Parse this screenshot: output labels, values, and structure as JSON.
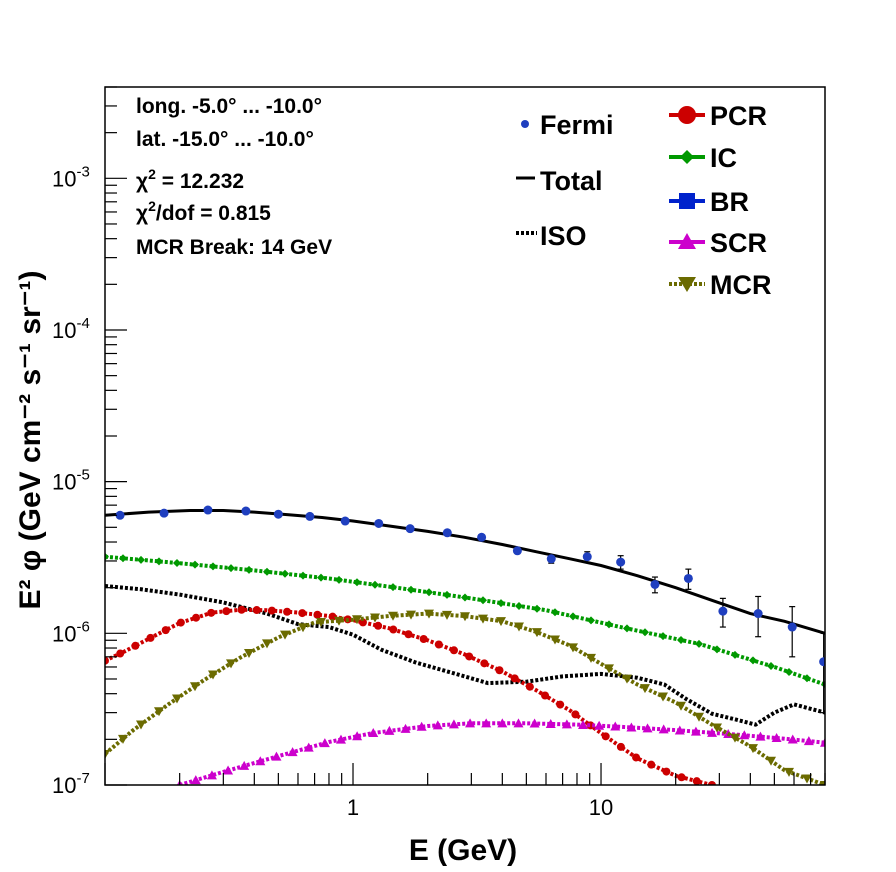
{
  "chart_data": {
    "type": "scatter",
    "xscale": "log",
    "yscale": "log",
    "xlim": [
      0.1,
      80
    ],
    "ylim": [
      1e-07,
      0.004
    ],
    "xlabel": "E (GeV)",
    "ylabel": "E² φ (GeV cm⁻² s⁻¹ sr⁻¹)",
    "x_tick_labels": [
      {
        "value": 1,
        "text": "1"
      },
      {
        "value": 10,
        "text": "10"
      }
    ],
    "y_tick_labels": [
      {
        "value": 1e-07,
        "base": "10",
        "exp": "-7"
      },
      {
        "value": 1e-06,
        "base": "10",
        "exp": "-6"
      },
      {
        "value": 1e-05,
        "base": "10",
        "exp": "-5"
      },
      {
        "value": 0.0001,
        "base": "10",
        "exp": "-4"
      },
      {
        "value": 0.001,
        "base": "10",
        "exp": "-3"
      }
    ],
    "annotations": {
      "long": "long. -5.0° ... -10.0°",
      "lat": "lat. -15.0° ... -10.0°",
      "chi2_prefix": "χ",
      "chi2_sup": "2",
      "chi2_suffix": " = 12.232",
      "chidof_prefix": "χ",
      "chidof_sup": "2",
      "chidof_suffix": "/dof = 0.815",
      "break": "MCR Break: 14 GeV"
    },
    "legend": [
      {
        "name": "Fermi",
        "style": "points"
      },
      {
        "name": "Total",
        "style": "line"
      },
      {
        "name": "ISO",
        "style": "dotted"
      },
      {
        "name": "PCR",
        "style": "circle-line"
      },
      {
        "name": "IC",
        "style": "diamond-line"
      },
      {
        "name": "BR",
        "style": "square-line"
      },
      {
        "name": "SCR",
        "style": "triangle-line"
      },
      {
        "name": "MCR",
        "style": "triangle-down-line"
      }
    ],
    "fermi": {
      "name": "Fermi",
      "color": "#1f3fbf",
      "x": [
        0.115,
        0.173,
        0.26,
        0.37,
        0.5,
        0.67,
        0.93,
        1.27,
        1.7,
        2.4,
        3.3,
        4.6,
        6.3,
        8.8,
        12,
        16.5,
        22.5,
        31,
        43,
        59,
        79
      ],
      "y": [
        6e-06,
        6.2e-06,
        6.5e-06,
        6.4e-06,
        6.1e-06,
        5.9e-06,
        5.5e-06,
        5.3e-06,
        4.9e-06,
        4.6e-06,
        4.3e-06,
        3.5e-06,
        3.1e-06,
        3.2e-06,
        2.95e-06,
        2.1e-06,
        2.3e-06,
        1.4e-06,
        1.35e-06,
        1.1e-06,
        6.5e-07
      ],
      "err_low": [
        0,
        0,
        0,
        0,
        0,
        0,
        0,
        0,
        0,
        0,
        0,
        0,
        2e-07,
        2.5e-07,
        3e-07,
        2.5e-07,
        3.5e-07,
        3e-07,
        4e-07,
        4e-07,
        3.5e-07
      ],
      "err_high": [
        0,
        0,
        0,
        0,
        0,
        0,
        0,
        0,
        0,
        0,
        0,
        0,
        2e-07,
        2.5e-07,
        3e-07,
        2.5e-07,
        3.5e-07,
        3e-07,
        4e-07,
        4e-07,
        3.5e-07
      ]
    },
    "series": [
      {
        "name": "Total",
        "color": "#000000",
        "style": "solid",
        "marker": "none",
        "x": [
          0.1,
          0.15,
          0.22,
          0.3,
          0.4,
          0.55,
          0.75,
          1.0,
          1.4,
          2.0,
          2.8,
          4.0,
          5.5,
          7.5,
          10,
          14,
          20,
          28,
          40,
          55,
          80
        ],
        "y": [
          6e-06,
          6.3e-06,
          6.45e-06,
          6.45e-06,
          6.3e-06,
          6.05e-06,
          5.8e-06,
          5.5e-06,
          5.1e-06,
          4.7e-06,
          4.3e-06,
          3.85e-06,
          3.45e-06,
          3.1e-06,
          2.8e-06,
          2.4e-06,
          2e-06,
          1.65e-06,
          1.35e-06,
          1.2e-06,
          1e-06
        ]
      },
      {
        "name": "ISO",
        "color": "#000000",
        "style": "dotted",
        "marker": "none",
        "x": [
          0.1,
          0.14,
          0.2,
          0.3,
          0.45,
          0.6,
          0.8,
          1.0,
          1.3,
          1.8,
          2.5,
          3.5,
          5,
          7,
          10,
          14,
          18,
          22,
          28,
          35,
          42,
          50,
          60,
          80
        ],
        "y": [
          2.05e-06,
          1.95e-06,
          1.8e-06,
          1.6e-06,
          1.35e-06,
          1.15e-06,
          1.1e-06,
          9.8e-07,
          7.8e-07,
          6.4e-07,
          5.5e-07,
          4.7e-07,
          4.8e-07,
          5.2e-07,
          5.4e-07,
          5.1e-07,
          4.6e-07,
          3.7e-07,
          2.95e-07,
          2.7e-07,
          2.5e-07,
          3e-07,
          3.4e-07,
          3e-07
        ]
      },
      {
        "name": "PCR",
        "color": "#cc0000",
        "style": "dashed",
        "marker": "circle",
        "x": [
          0.1,
          0.12,
          0.15,
          0.2,
          0.27,
          0.35,
          0.45,
          0.6,
          0.8,
          1.0,
          1.4,
          2.0,
          2.8,
          4.0,
          5.5,
          7.5,
          10,
          14,
          20,
          28
        ],
        "y": [
          6.6e-07,
          7.6e-07,
          9.2e-07,
          1.17e-06,
          1.37e-06,
          1.43e-06,
          1.42e-06,
          1.37e-06,
          1.3e-06,
          1.22e-06,
          1.08e-06,
          9e-07,
          7.3e-07,
          5.6e-07,
          4.2e-07,
          3.1e-07,
          2.2e-07,
          1.5e-07,
          1.15e-07,
          1e-07
        ]
      },
      {
        "name": "IC",
        "color": "#009900",
        "style": "dashed",
        "marker": "diamond",
        "x": [
          0.1,
          0.2,
          0.4,
          0.8,
          1.5,
          3,
          6,
          12,
          25,
          50,
          80
        ],
        "y": [
          3.2e-06,
          2.9e-06,
          2.6e-06,
          2.3e-06,
          2e-06,
          1.7e-06,
          1.42e-06,
          1.1e-06,
          8.5e-07,
          6e-07,
          4.6e-07
        ]
      },
      {
        "name": "SCR",
        "color": "#cc00cc",
        "style": "dashed",
        "marker": "triangle",
        "x": [
          0.2,
          0.3,
          0.5,
          0.8,
          1.2,
          2.0,
          3.0,
          5.0,
          8.0,
          12,
          20,
          35,
          55,
          80
        ],
        "y": [
          1e-07,
          1.22e-07,
          1.55e-07,
          1.92e-07,
          2.2e-07,
          2.45e-07,
          2.55e-07,
          2.55e-07,
          2.5e-07,
          2.42e-07,
          2.3e-07,
          2.15e-07,
          2.02e-07,
          1.9e-07
        ]
      },
      {
        "name": "MCR",
        "color": "#6b6b00",
        "style": "dashed",
        "marker": "triangle-down",
        "x": [
          0.1,
          0.13,
          0.18,
          0.25,
          0.35,
          0.5,
          0.7,
          1.0,
          1.4,
          2.0,
          2.8,
          4.0,
          5.5,
          7.5,
          10,
          14,
          20,
          28,
          40,
          55,
          80
        ],
        "y": [
          1.6e-07,
          2.3e-07,
          3.4e-07,
          4.9e-07,
          6.9e-07,
          9.4e-07,
          1.18e-06,
          1.23e-06,
          1.3e-06,
          1.35e-06,
          1.3e-06,
          1.2e-06,
          1.02e-06,
          8.3e-07,
          6.3e-07,
          4.6e-07,
          3.5e-07,
          2.5e-07,
          1.8e-07,
          1.25e-07,
          1e-07
        ]
      }
    ]
  }
}
